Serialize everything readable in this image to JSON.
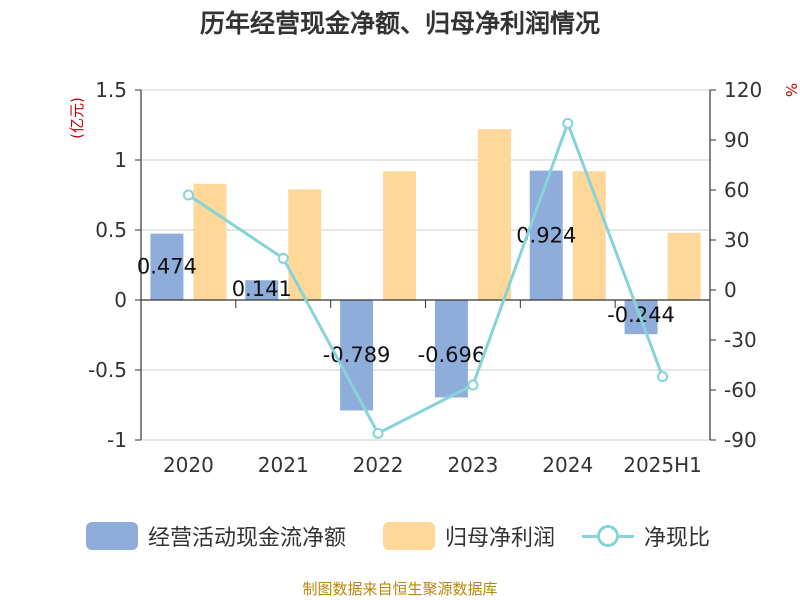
{
  "title": "历年经营现金净额、归母净利润情况",
  "source_note": "制图数据来自恒生聚源数据库",
  "colors": {
    "cash": "#8EADDB",
    "profit": "#FFD899",
    "ratio": "#86D3D8",
    "axis_unit": "#CC0000",
    "source": "#B8860B"
  },
  "legend": [
    {
      "label": "经营活动现金流净额"
    },
    {
      "label": "归母净利润"
    },
    {
      "label": "净现比"
    }
  ],
  "chart_data": {
    "type": "bar",
    "title": "历年经营现金净额、归母净利润情况",
    "categories": [
      "2020",
      "2021",
      "2022",
      "2023",
      "2024",
      "2025H1"
    ],
    "left_axis": {
      "unit_label": "(亿元)",
      "ylim": [
        -1,
        1.5
      ],
      "ticks": [
        "-1",
        "-0.5",
        "0",
        "0.5",
        "1",
        "1.5"
      ],
      "tick_values": [
        -1,
        -0.5,
        0,
        0.5,
        1,
        1.5
      ]
    },
    "right_axis": {
      "unit_label": "%",
      "ylim": [
        -90,
        120
      ],
      "ticks": [
        "-90",
        "-60",
        "-30",
        "0",
        "30",
        "60",
        "90",
        "120"
      ],
      "tick_values": [
        -90,
        -60,
        -30,
        0,
        30,
        60,
        90,
        120
      ]
    },
    "grid": true,
    "legend_position": "bottom",
    "series": [
      {
        "name": "经营活动现金流净额",
        "type": "bar",
        "axis": "left",
        "values": [
          0.474,
          0.141,
          -0.789,
          -0.696,
          0.924,
          -0.244
        ],
        "labels": [
          "0.474",
          "0.141",
          "-0.789",
          "-0.696",
          "0.924",
          "-0.244"
        ]
      },
      {
        "name": "归母净利润",
        "type": "bar",
        "axis": "left",
        "values": [
          0.83,
          0.79,
          0.92,
          1.22,
          0.92,
          0.48
        ]
      },
      {
        "name": "净现比",
        "type": "line",
        "axis": "right",
        "values": [
          57,
          19,
          -86,
          -57,
          100,
          -52
        ]
      }
    ]
  }
}
